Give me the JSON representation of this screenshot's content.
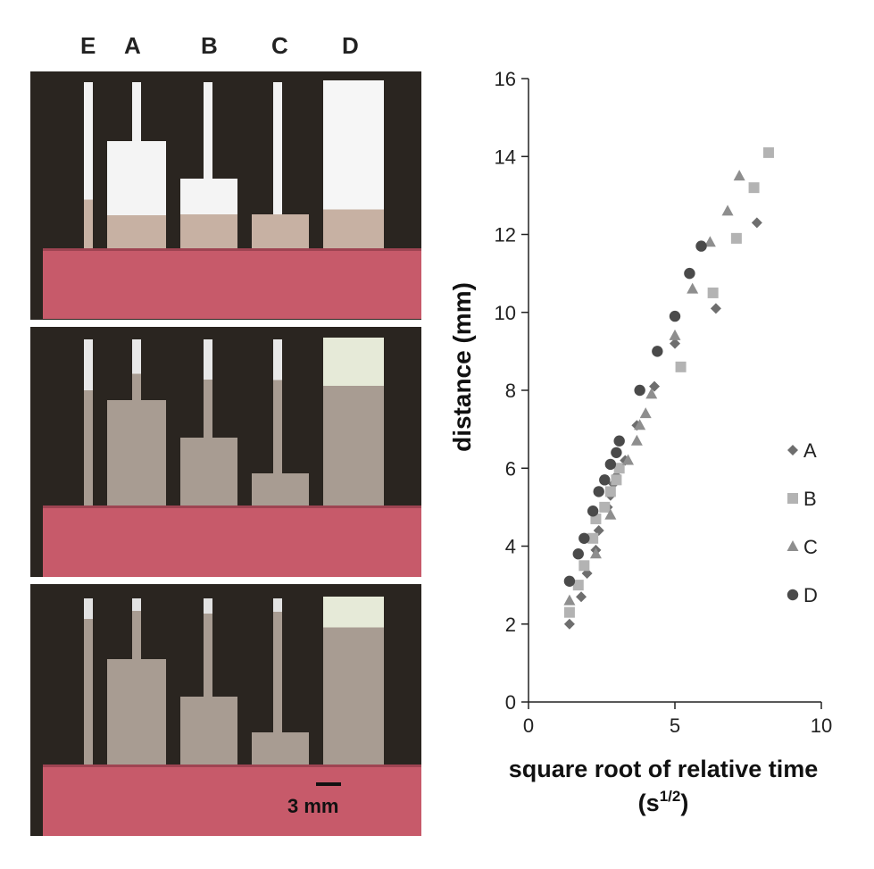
{
  "photo_labels": [
    "E",
    "A",
    "B",
    "C",
    "D"
  ],
  "scale_label": "3 mm",
  "chart_data": {
    "type": "scatter",
    "xlabel_line1": "square root of relative time",
    "xlabel_line2": "(s",
    "xlabel_sup": "1/2",
    "xlabel_close": ")",
    "ylabel": "distance (mm)",
    "xlim": [
      0,
      10
    ],
    "ylim": [
      0,
      16
    ],
    "x_ticks": [
      0,
      5,
      10
    ],
    "y_ticks": [
      0,
      2,
      4,
      6,
      8,
      10,
      12,
      14,
      16
    ],
    "legend_position": "right",
    "series": [
      {
        "name": "A",
        "marker": "diamond",
        "color": "#6e6e6e",
        "points": [
          [
            1.4,
            2.0
          ],
          [
            1.8,
            2.7
          ],
          [
            2.0,
            3.3
          ],
          [
            2.3,
            3.9
          ],
          [
            2.4,
            4.4
          ],
          [
            2.7,
            5.0
          ],
          [
            2.8,
            5.3
          ],
          [
            2.9,
            5.6
          ],
          [
            3.0,
            5.8
          ],
          [
            3.3,
            6.2
          ],
          [
            3.7,
            7.1
          ],
          [
            4.3,
            8.1
          ],
          [
            5.0,
            9.2
          ],
          [
            6.4,
            10.1
          ],
          [
            7.8,
            12.3
          ]
        ]
      },
      {
        "name": "B",
        "marker": "square",
        "color": "#b3b3b3",
        "points": [
          [
            1.4,
            2.3
          ],
          [
            1.7,
            3.0
          ],
          [
            1.9,
            3.5
          ],
          [
            2.2,
            4.2
          ],
          [
            2.3,
            4.7
          ],
          [
            2.6,
            5.0
          ],
          [
            2.8,
            5.4
          ],
          [
            3.0,
            5.7
          ],
          [
            3.1,
            6.0
          ],
          [
            5.2,
            8.6
          ],
          [
            6.3,
            10.5
          ],
          [
            7.1,
            11.9
          ],
          [
            7.7,
            13.2
          ],
          [
            8.2,
            14.1
          ]
        ]
      },
      {
        "name": "C",
        "marker": "triangle",
        "color": "#8e8e8e",
        "points": [
          [
            1.4,
            2.6
          ],
          [
            2.3,
            3.8
          ],
          [
            2.8,
            4.8
          ],
          [
            3.4,
            6.2
          ],
          [
            3.7,
            6.7
          ],
          [
            3.8,
            7.1
          ],
          [
            4.0,
            7.4
          ],
          [
            4.2,
            7.9
          ],
          [
            5.0,
            9.4
          ],
          [
            5.6,
            10.6
          ],
          [
            6.2,
            11.8
          ],
          [
            6.8,
            12.6
          ],
          [
            7.2,
            13.5
          ]
        ]
      },
      {
        "name": "D",
        "marker": "circle",
        "color": "#4a4a4a",
        "points": [
          [
            1.4,
            3.1
          ],
          [
            1.7,
            3.8
          ],
          [
            1.9,
            4.2
          ],
          [
            2.2,
            4.9
          ],
          [
            2.4,
            5.4
          ],
          [
            2.6,
            5.7
          ],
          [
            2.8,
            6.1
          ],
          [
            3.0,
            6.4
          ],
          [
            3.1,
            6.7
          ],
          [
            3.8,
            8.0
          ],
          [
            4.4,
            9.0
          ],
          [
            5.0,
            9.9
          ],
          [
            5.5,
            11.0
          ],
          [
            5.9,
            11.7
          ]
        ]
      }
    ]
  }
}
